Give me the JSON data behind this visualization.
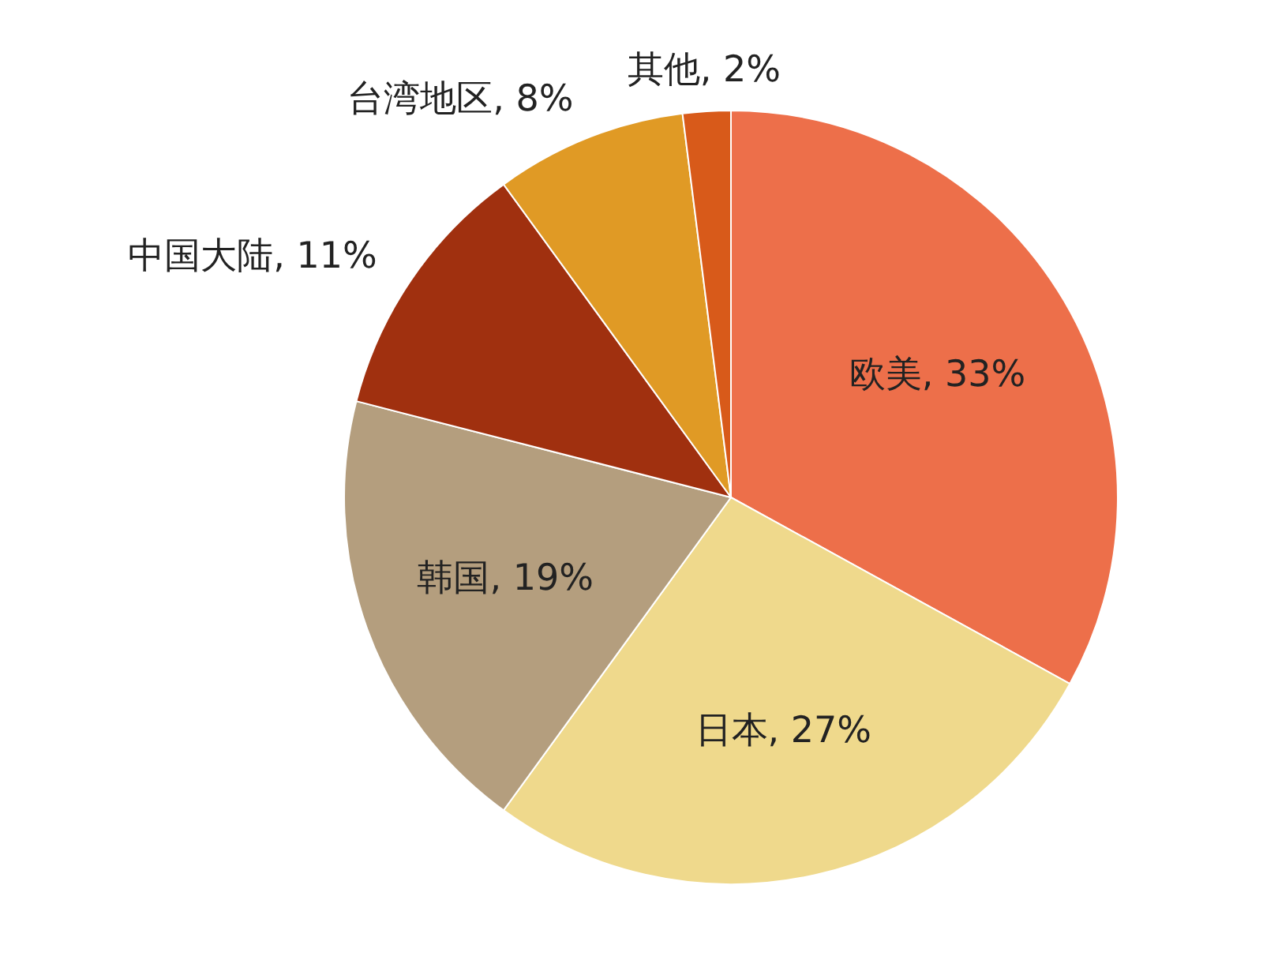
{
  "chart_data": {
    "type": "pie",
    "categories": [
      "欧美",
      "日本",
      "韩国",
      "中国大陆",
      "台湾地区",
      "其他"
    ],
    "values": [
      33,
      27,
      19,
      11,
      8,
      2
    ],
    "value_labels": [
      "33%",
      "27%",
      "19%",
      "11%",
      "8%",
      "2%"
    ],
    "colors": [
      "#ed6f4a",
      "#efd98c",
      "#b49e7e",
      "#a0300f",
      "#e09a25",
      "#d85a1a"
    ]
  }
}
